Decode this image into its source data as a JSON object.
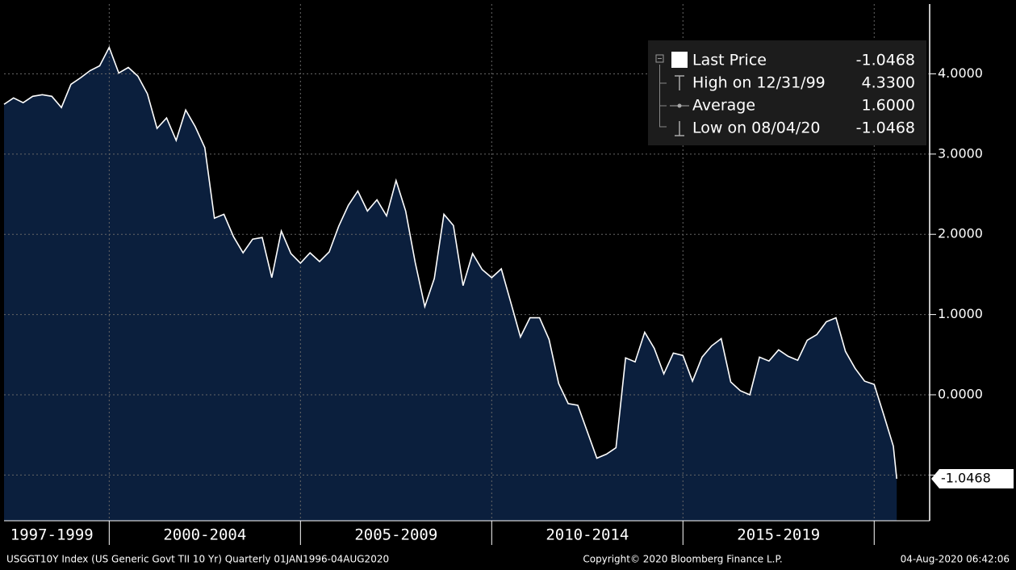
{
  "chart_data": {
    "type": "area",
    "footer_left": "USGGT10Y Index (US Generic Govt TII 10 Yr)  Quarterly 01JAN1996-04AUG2020",
    "footer_center": "Copyright© 2020 Bloomberg Finance L.P.",
    "footer_right": "04-Aug-2020 06:42:06",
    "legend_rows": [
      {
        "name": "Last Price",
        "value": "-1.0468"
      },
      {
        "name": "High on 12/31/99",
        "value": "4.3300"
      },
      {
        "name": "Average",
        "value": "1.6000"
      },
      {
        "name": "Low on 08/04/20",
        "value": "-1.0468"
      }
    ],
    "last_value_label": "-1.0468",
    "xlim": [
      1997.25,
      2021.45
    ],
    "xticks": [
      2000,
      2005,
      2010,
      2015,
      2020
    ],
    "period_labels": [
      {
        "value": 1998.5,
        "label": "1997-1999"
      },
      {
        "value": 2002.5,
        "label": "2000-2004"
      },
      {
        "value": 2007.5,
        "label": "2005-2009"
      },
      {
        "value": 2012.5,
        "label": "2010-2014"
      },
      {
        "value": 2017.5,
        "label": "2015-2019"
      }
    ],
    "ylim": [
      -1.57,
      4.87
    ],
    "yticks": [
      {
        "value": -1,
        "label": "-1.0000"
      },
      {
        "value": 0,
        "label": "0.0000"
      },
      {
        "value": 1,
        "label": "1.0000"
      },
      {
        "value": 2,
        "label": "2.0000"
      },
      {
        "value": 3,
        "label": "3.0000"
      },
      {
        "value": 4,
        "label": "4.0000"
      }
    ],
    "grid": true,
    "x": [
      1997.25,
      1997.5,
      1997.75,
      1998,
      1998.25,
      1998.5,
      1998.75,
      1999,
      1999.25,
      1999.5,
      1999.75,
      2000,
      2000.25,
      2000.5,
      2000.75,
      2001,
      2001.25,
      2001.5,
      2001.75,
      2002,
      2002.25,
      2002.5,
      2002.75,
      2003,
      2003.25,
      2003.5,
      2003.75,
      2004,
      2004.25,
      2004.5,
      2004.75,
      2005,
      2005.25,
      2005.5,
      2005.75,
      2006,
      2006.25,
      2006.5,
      2006.75,
      2007,
      2007.25,
      2007.5,
      2007.75,
      2008,
      2008.25,
      2008.5,
      2008.75,
      2009,
      2009.25,
      2009.5,
      2009.75,
      2010,
      2010.25,
      2010.5,
      2010.75,
      2011,
      2011.25,
      2011.5,
      2011.75,
      2012,
      2012.25,
      2012.5,
      2012.75,
      2013,
      2013.25,
      2013.5,
      2013.75,
      2014,
      2014.25,
      2014.5,
      2014.75,
      2015,
      2015.25,
      2015.5,
      2015.75,
      2016,
      2016.25,
      2016.5,
      2016.75,
      2017,
      2017.25,
      2017.5,
      2017.75,
      2018,
      2018.25,
      2018.5,
      2018.75,
      2019,
      2019.25,
      2019.5,
      2019.75,
      2020,
      2020.25,
      2020.5,
      2020.59
    ],
    "series": [
      {
        "name": "Last Price",
        "color": "#ffffff",
        "fill": "#0b1f3d",
        "values": [
          3.62,
          3.7,
          3.64,
          3.72,
          3.74,
          3.72,
          3.58,
          3.87,
          3.95,
          4.04,
          4.1,
          4.33,
          4.01,
          4.08,
          3.97,
          3.75,
          3.32,
          3.45,
          3.17,
          3.55,
          3.34,
          3.08,
          2.2,
          2.25,
          1.97,
          1.77,
          1.94,
          1.96,
          1.46,
          2.04,
          1.76,
          1.64,
          1.77,
          1.66,
          1.78,
          2.1,
          2.36,
          2.54,
          2.29,
          2.43,
          2.23,
          2.67,
          2.29,
          1.65,
          1.1,
          1.45,
          2.25,
          2.11,
          1.36,
          1.76,
          1.56,
          1.46,
          1.57,
          1.15,
          0.72,
          0.96,
          0.96,
          0.69,
          0.14,
          -0.11,
          -0.13,
          -0.46,
          -0.79,
          -0.74,
          -0.66,
          0.46,
          0.41,
          0.78,
          0.58,
          0.26,
          0.52,
          0.49,
          0.17,
          0.47,
          0.61,
          0.7,
          0.16,
          0.05,
          0.0,
          0.47,
          0.42,
          0.56,
          0.48,
          0.43,
          0.68,
          0.75,
          0.91,
          0.96,
          0.54,
          0.33,
          0.17,
          0.13,
          -0.25,
          -0.64,
          -1.0468
        ]
      }
    ]
  }
}
